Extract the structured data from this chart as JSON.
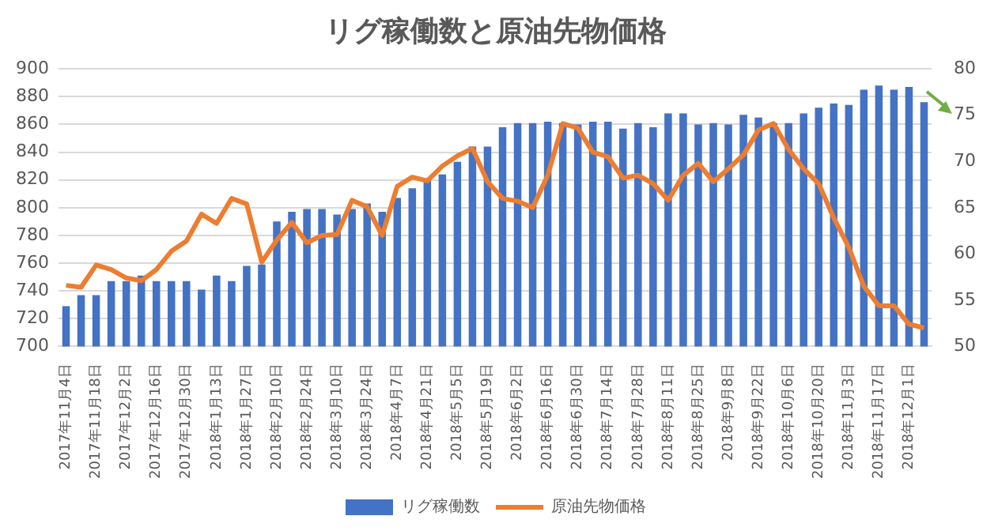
{
  "chart_data": {
    "type": "bar",
    "title": "リグ稼働数と原油先物価格",
    "categories": [
      "2017年11月4日",
      null,
      "2017年11月18日",
      null,
      "2017年12月2日",
      null,
      "2017年12月16日",
      null,
      "2017年12月30日",
      null,
      "2018年1月13日",
      null,
      "2018年1月27日",
      null,
      "2018年2月10日",
      null,
      "2018年2月24日",
      null,
      "2018年3月10日",
      null,
      "2018年3月24日",
      null,
      "2018年4月7日",
      null,
      "2018年4月21日",
      null,
      "2018年5月5日",
      null,
      "2018年5月19日",
      null,
      "2018年6月2日",
      null,
      "2018年6月16日",
      null,
      "2018年6月30日",
      null,
      "2018年7月14日",
      null,
      "2018年7月28日",
      null,
      "2018年8月11日",
      null,
      "2018年8月25日",
      null,
      "2018年9月8日",
      null,
      "2018年9月22日",
      null,
      "2018年10月6日",
      null,
      "2018年10月20日",
      null,
      "2018年11月3日",
      null,
      "2018年11月17日",
      null,
      "2018年12月1日",
      null
    ],
    "series": [
      {
        "name": "リグ稼働数",
        "color": "#4472c4",
        "values": [
          729,
          737,
          737,
          747,
          747,
          751,
          747,
          747,
          747,
          741,
          751,
          747,
          758,
          759,
          790,
          797,
          799,
          799,
          795,
          799,
          803,
          797,
          807,
          814,
          820,
          824,
          833,
          844,
          844,
          858,
          861,
          861,
          862,
          861,
          860,
          862,
          862,
          857,
          861,
          858,
          868,
          868,
          860,
          861,
          860,
          867,
          865,
          861,
          861,
          868,
          872,
          875,
          874,
          885,
          888,
          885,
          887,
          876
        ]
      },
      {
        "name": "原油先物価格",
        "type": "line",
        "axis": "y2",
        "color": "#ed7d31",
        "values": [
          56.6,
          56.4,
          58.8,
          58.3,
          57.4,
          57.1,
          58.3,
          60.3,
          61.4,
          64.3,
          63.3,
          66.0,
          65.4,
          59.1,
          61.5,
          63.4,
          61.2,
          62.0,
          62.1,
          65.8,
          65.1,
          62.0,
          67.3,
          68.3,
          67.9,
          69.5,
          70.6,
          71.4,
          67.8,
          66.0,
          65.7,
          65.0,
          68.5,
          74.1,
          73.6,
          71.0,
          70.5,
          68.2,
          68.5,
          67.6,
          65.8,
          68.5,
          69.8,
          67.8,
          69.2,
          70.7,
          73.4,
          74.1,
          71.3,
          69.2,
          67.6,
          63.9,
          60.7,
          56.5,
          54.4,
          54.4,
          52.4,
          52.0
        ]
      }
    ],
    "ylim": [
      700,
      900
    ],
    "yticks": [
      700,
      720,
      740,
      760,
      780,
      800,
      820,
      840,
      860,
      880,
      900
    ],
    "y2lim": [
      50,
      80
    ],
    "y2ticks": [
      50,
      55,
      60,
      65,
      70,
      75,
      80
    ],
    "grid": "y",
    "legend": "bottom"
  }
}
